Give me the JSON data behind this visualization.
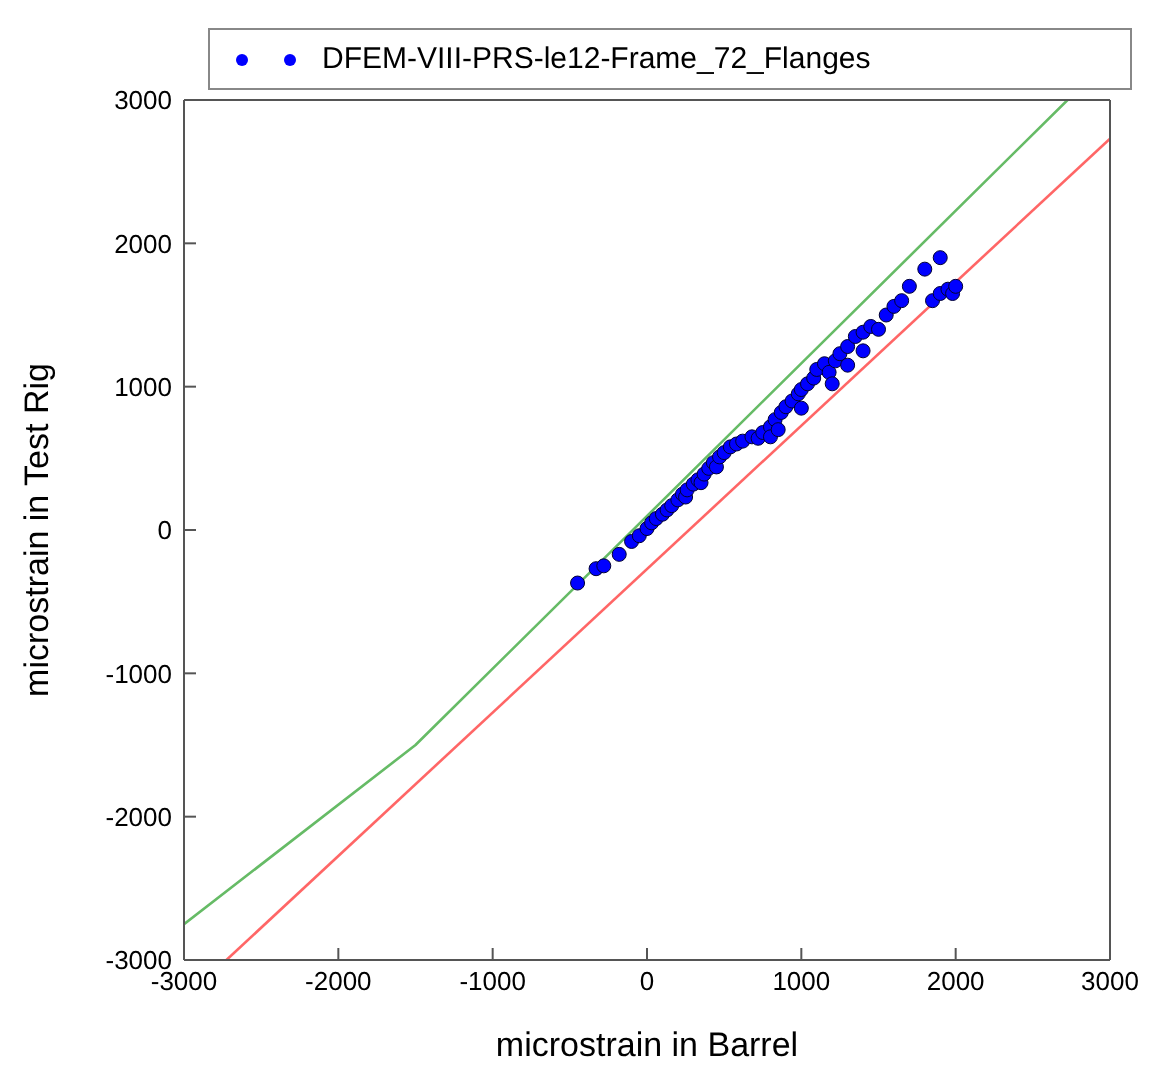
{
  "chart_data": {
    "type": "scatter",
    "xlabel": "microstrain in Barrel",
    "ylabel": "microstrain in Test Rig",
    "xlim": [
      -3000,
      3000
    ],
    "ylim": [
      -3000,
      3000
    ],
    "xticks": [
      -3000,
      -2000,
      -1000,
      0,
      1000,
      2000,
      3000
    ],
    "yticks": [
      -3000,
      -2000,
      -1000,
      0,
      1000,
      2000,
      3000
    ],
    "legend": "top",
    "series": [
      {
        "name": "DFEM-VIII-PRS-le12-Frame_72_Flanges",
        "marker": "circle",
        "color": "#0000ff",
        "x": [
          -450,
          -330,
          -280,
          -180,
          -100,
          -50,
          0,
          30,
          60,
          100,
          130,
          160,
          200,
          230,
          250,
          260,
          300,
          330,
          350,
          370,
          400,
          430,
          450,
          470,
          500,
          540,
          580,
          620,
          680,
          720,
          750,
          800,
          800,
          830,
          850,
          870,
          900,
          940,
          980,
          1000,
          1000,
          1040,
          1080,
          1100,
          1150,
          1180,
          1200,
          1220,
          1250,
          1300,
          1300,
          1350,
          1400,
          1400,
          1450,
          1500,
          1550,
          1600,
          1650,
          1700,
          1800,
          1850,
          1900,
          1900,
          1950,
          1980,
          2000
        ],
        "values": [
          -370,
          -270,
          -250,
          -170,
          -80,
          -40,
          10,
          50,
          80,
          110,
          140,
          170,
          210,
          250,
          230,
          280,
          320,
          350,
          330,
          390,
          430,
          470,
          440,
          510,
          540,
          580,
          600,
          620,
          650,
          640,
          680,
          720,
          650,
          770,
          700,
          820,
          860,
          900,
          950,
          980,
          850,
          1020,
          1060,
          1120,
          1160,
          1100,
          1020,
          1180,
          1230,
          1280,
          1150,
          1350,
          1380,
          1250,
          1420,
          1400,
          1500,
          1560,
          1600,
          1700,
          1820,
          1600,
          1900,
          1650,
          1680,
          1650,
          1700
        ]
      },
      {
        "type": "line",
        "marker": "none",
        "color": "#ff6666",
        "x": [
          -2725,
          3000
        ],
        "values": [
          -3000,
          2730
        ]
      },
      {
        "type": "line",
        "marker": "none",
        "color": "#66bb66",
        "x": [
          -3000,
          -1500,
          2725
        ],
        "values": [
          -2750,
          -1500,
          3000
        ]
      }
    ]
  }
}
